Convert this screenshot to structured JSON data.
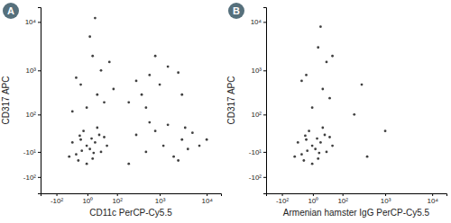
{
  "chart_data": [
    {
      "type": "scatter",
      "title": "A",
      "x_label": "CD11c PerCP-Cy5.5",
      "y_label": "CD317 APC",
      "log": true,
      "color": "#000000",
      "xlim": [
        -250,
        20000
      ],
      "ylim": [
        -250,
        20000
      ],
      "xticks": [
        {
          "value": -100,
          "label": "-10²"
        },
        {
          "value": 1,
          "label": "10⁰"
        },
        {
          "value": 100,
          "label": "10²"
        },
        {
          "value": 1000,
          "label": "10³"
        },
        {
          "value": 10000,
          "label": "10⁴"
        }
      ],
      "yticks": [
        {
          "value": -100,
          "label": "-10²"
        },
        {
          "value": -10,
          "label": "-10¹"
        },
        {
          "value": 100,
          "label": "10²"
        },
        {
          "value": 1000,
          "label": "10³"
        },
        {
          "value": 10000,
          "label": "10⁴"
        }
      ],
      "x": [
        0,
        5,
        -10,
        15,
        -20,
        25,
        -5,
        10,
        30,
        -30,
        40,
        -15,
        20,
        0,
        50,
        -40,
        8,
        -8,
        12,
        -12,
        0,
        20,
        -10,
        30,
        10,
        -20,
        40,
        5,
        60,
        -30,
        15,
        80,
        200,
        400,
        600,
        1000,
        1500,
        2500,
        800,
        3000,
        300,
        500,
        300,
        500,
        800,
        1200,
        2000,
        3000,
        4000,
        5000,
        7000,
        1500,
        2500,
        600,
        10000,
        3500,
        200
      ],
      "values": [
        0,
        -5,
        10,
        5,
        -15,
        20,
        30,
        -25,
        -10,
        5,
        15,
        -30,
        40,
        -40,
        0,
        -20,
        12,
        -8,
        -12,
        18,
        150,
        300,
        500,
        1000,
        2000,
        700,
        200,
        5000,
        1500,
        120,
        12000,
        400,
        200,
        300,
        800,
        500,
        1200,
        900,
        2000,
        300,
        600,
        150,
        20,
        -10,
        30,
        0,
        -20,
        10,
        -5,
        25,
        0,
        50,
        -30,
        60,
        10,
        40,
        -40
      ]
    },
    {
      "type": "scatter",
      "title": "B",
      "x_label": "Armenian hamster IgG PerCP-Cy5.5",
      "y_label": "CD317 APC",
      "log": true,
      "color": "#000000",
      "xlim": [
        -250,
        20000
      ],
      "ylim": [
        -250,
        20000
      ],
      "xticks": [
        {
          "value": -100,
          "label": "-10²"
        },
        {
          "value": 1,
          "label": "10⁰"
        },
        {
          "value": 100,
          "label": "10²"
        },
        {
          "value": 1000,
          "label": "10³"
        },
        {
          "value": 10000,
          "label": "10⁴"
        }
      ],
      "yticks": [
        {
          "value": -100,
          "label": "-10²"
        },
        {
          "value": -10,
          "label": "-10¹"
        },
        {
          "value": 100,
          "label": "10²"
        },
        {
          "value": 1000,
          "label": "10³"
        },
        {
          "value": 10000,
          "label": "10⁴"
        }
      ],
      "x": [
        0,
        5,
        -10,
        15,
        -20,
        25,
        -5,
        10,
        30,
        -30,
        40,
        -15,
        20,
        0,
        50,
        -40,
        8,
        -8,
        12,
        -12,
        0,
        20,
        -10,
        30,
        10,
        -20,
        15,
        40,
        50,
        200,
        400,
        1000,
        300
      ],
      "values": [
        0,
        -5,
        10,
        5,
        -15,
        20,
        30,
        -25,
        -10,
        5,
        15,
        -30,
        40,
        -40,
        0,
        -20,
        12,
        -8,
        -12,
        18,
        150,
        400,
        800,
        1500,
        3000,
        600,
        8000,
        250,
        2000,
        100,
        -20,
        30,
        500
      ]
    }
  ]
}
